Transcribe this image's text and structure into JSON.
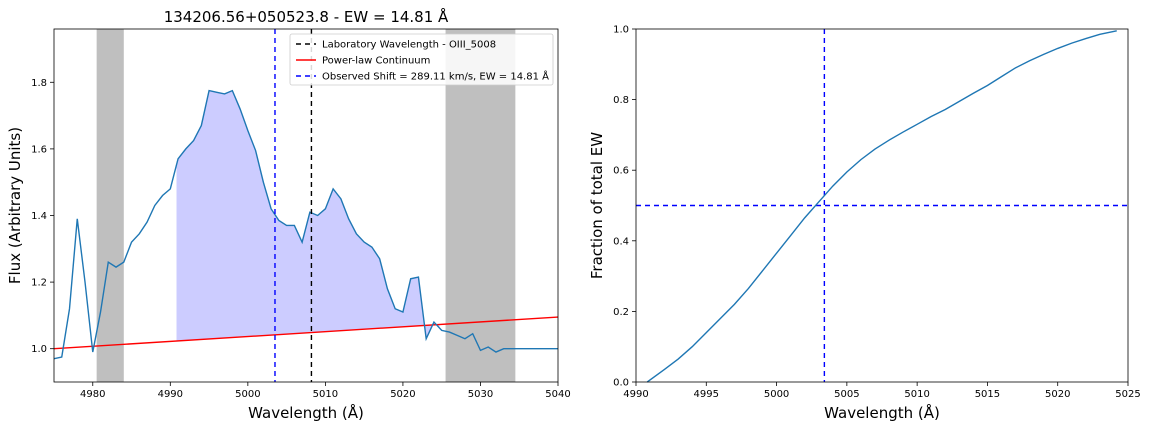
{
  "chart_data": [
    {
      "type": "line",
      "title": "134206.56+050523.8 - EW = 14.81 Å",
      "xlabel": "Wavelength (Å)",
      "ylabel": "Flux (Arbitrary Units)",
      "xlim": [
        4975,
        5040
      ],
      "ylim": [
        0.9,
        1.96
      ],
      "xticks": [
        4980,
        4990,
        5000,
        5010,
        5020,
        5030,
        5040
      ],
      "yticks": [
        1.0,
        1.2,
        1.4,
        1.6,
        1.8
      ],
      "xtick_labels": [
        "4980",
        "4990",
        "5000",
        "5010",
        "5020",
        "5030",
        "5040"
      ],
      "ytick_labels": [
        "1.0",
        "1.2",
        "1.4",
        "1.6",
        "1.8"
      ],
      "legend_position": "top-right",
      "spectrum": {
        "color": "#1f77b4",
        "x": [
          4975,
          4976,
          4977,
          4978,
          4979,
          4980,
          4981,
          4982,
          4983,
          4984,
          4985,
          4986,
          4987,
          4988,
          4989,
          4990,
          4991,
          4992,
          4993,
          4994,
          4995,
          4996,
          4997,
          4998,
          4999,
          5000,
          5001,
          5002,
          5003,
          5004,
          5005,
          5006,
          5007,
          5008,
          5009,
          5010,
          5011,
          5012,
          5013,
          5014,
          5015,
          5016,
          5017,
          5018,
          5019,
          5020,
          5021,
          5022,
          5023,
          5024,
          5025,
          5026,
          5027,
          5028,
          5029,
          5030,
          5031,
          5032,
          5033,
          5034,
          5035,
          5036,
          5037,
          5038,
          5039,
          5040
        ],
        "y": [
          0.97,
          0.975,
          1.12,
          1.39,
          1.2,
          0.99,
          1.11,
          1.26,
          1.245,
          1.26,
          1.32,
          1.345,
          1.38,
          1.43,
          1.46,
          1.48,
          1.57,
          1.6,
          1.625,
          1.67,
          1.775,
          1.77,
          1.765,
          1.775,
          1.72,
          1.655,
          1.595,
          1.5,
          1.42,
          1.385,
          1.37,
          1.37,
          1.32,
          1.41,
          1.4,
          1.42,
          1.48,
          1.45,
          1.39,
          1.345,
          1.32,
          1.305,
          1.27,
          1.18,
          1.12,
          1.11,
          1.21,
          1.215,
          1.03,
          1.08,
          1.055,
          1.05,
          1.04,
          1.03,
          1.045,
          0.995,
          1.005,
          0.99,
          1.0,
          1.0,
          1.0,
          1.0,
          1.0,
          1.0,
          1.0,
          1.0
        ]
      },
      "continuum": {
        "label": "Power-law Continuum",
        "color": "#ff0000",
        "x": [
          4975,
          5040
        ],
        "y": [
          1.0,
          1.095
        ]
      },
      "fill_region": {
        "x_range": [
          4990.8,
          5024.7
        ],
        "color": "#0000ff",
        "opacity": 0.2
      },
      "excluded_bands": [
        {
          "x_range": [
            4980.5,
            4984.0
          ],
          "color": "#808080",
          "opacity": 0.5
        },
        {
          "x_range": [
            5025.5,
            5034.5
          ],
          "color": "#808080",
          "opacity": 0.5
        }
      ],
      "vlines": [
        {
          "label": "Laboratory Wavelength - OIII_5008",
          "x": 5008.2,
          "color": "#000000",
          "dash": "5,4"
        },
        {
          "label": "Observed Shift = 289.11 km/s, EW = 14.81 Å",
          "x": 5003.5,
          "color": "#0000ff",
          "dash": "5,4"
        }
      ],
      "legend": [
        {
          "label": "Laboratory Wavelength - OIII_5008",
          "color": "#000000",
          "dash": "5,4"
        },
        {
          "label": "Power-law Continuum",
          "color": "#ff0000",
          "dash": ""
        },
        {
          "label": "Observed Shift = 289.11 km/s, EW = 14.81 Å",
          "color": "#0000ff",
          "dash": "5,4"
        }
      ]
    },
    {
      "type": "line",
      "title": "",
      "xlabel": "Wavelength (Å)",
      "ylabel": "Fraction of total EW",
      "xlim": [
        4990,
        5025
      ],
      "ylim": [
        0.0,
        1.0
      ],
      "xticks": [
        4990,
        4995,
        5000,
        5005,
        5010,
        5015,
        5020,
        5025
      ],
      "yticks": [
        0.0,
        0.2,
        0.4,
        0.6,
        0.8,
        1.0
      ],
      "xtick_labels": [
        "4990",
        "4995",
        "5000",
        "5005",
        "5010",
        "5015",
        "5020",
        "5025"
      ],
      "ytick_labels": [
        "0.0",
        "0.2",
        "0.4",
        "0.6",
        "0.8",
        "1.0"
      ],
      "cumulative": {
        "color": "#1f77b4",
        "x": [
          4990.8,
          4992,
          4993,
          4994,
          4995,
          4996,
          4997,
          4998,
          4999,
          5000,
          5001,
          5002,
          5003,
          5004,
          5005,
          5006,
          5007,
          5008,
          5009,
          5010,
          5011,
          5012,
          5013,
          5014,
          5015,
          5016,
          5017,
          5018,
          5019,
          5020,
          5021,
          5022,
          5023,
          5024.2
        ],
        "y": [
          0.0,
          0.035,
          0.065,
          0.1,
          0.14,
          0.18,
          0.22,
          0.265,
          0.315,
          0.365,
          0.415,
          0.465,
          0.51,
          0.555,
          0.595,
          0.63,
          0.66,
          0.685,
          0.708,
          0.73,
          0.752,
          0.772,
          0.795,
          0.818,
          0.84,
          0.865,
          0.89,
          0.91,
          0.928,
          0.945,
          0.96,
          0.973,
          0.985,
          0.995
        ]
      },
      "hline": {
        "y": 0.5,
        "color": "#0000ff",
        "dash": "5,4"
      },
      "vline": {
        "x": 5003.4,
        "color": "#0000ff",
        "dash": "5,4"
      }
    }
  ]
}
